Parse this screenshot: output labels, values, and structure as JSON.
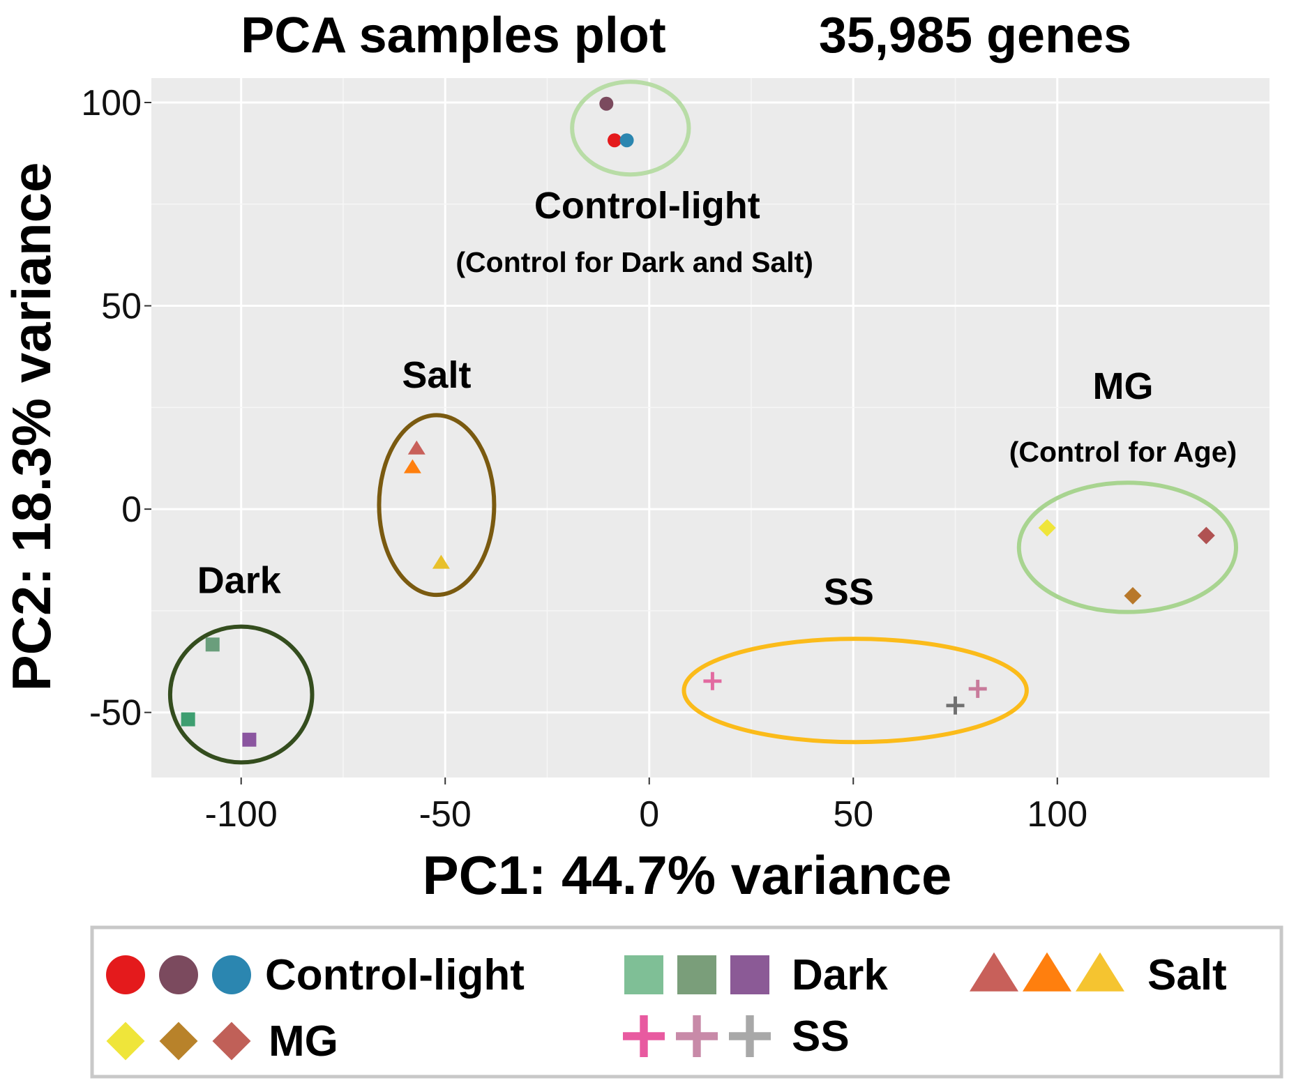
{
  "chart_data": {
    "type": "scatter",
    "title": "PCA samples plot",
    "subtitle": "35,985 genes",
    "xlabel": "PC1: 44.7% variance",
    "ylabel": "PC2: 18.3% variance",
    "xlim": [
      -122,
      152
    ],
    "ylim": [
      -66,
      106
    ],
    "xticks": [
      -100,
      -50,
      0,
      50,
      100
    ],
    "yticks": [
      100,
      50,
      0,
      -50
    ],
    "xtick_labels": [
      "-100",
      "-50",
      "0",
      "50",
      "100"
    ],
    "ytick_labels": [
      "100",
      "50",
      "0",
      "-50"
    ],
    "grid": true,
    "panel_color": "#ebebeb",
    "points": [
      {
        "group": "Control-light",
        "shape": "circle",
        "color": "#7b4a5e",
        "x": -10.5,
        "y": 99.7
      },
      {
        "group": "Control-light",
        "shape": "circle",
        "color": "#e41a1c",
        "x": -8.5,
        "y": 90.7
      },
      {
        "group": "Control-light",
        "shape": "circle",
        "color": "#2b86b0",
        "x": -5.5,
        "y": 90.7
      },
      {
        "group": "Dark",
        "shape": "square",
        "color": "#6a9e7c",
        "x": -107,
        "y": -33.3
      },
      {
        "group": "Dark",
        "shape": "square",
        "color": "#3d9e70",
        "x": -113,
        "y": -51.7
      },
      {
        "group": "Dark",
        "shape": "square",
        "color": "#8b56a0",
        "x": -98,
        "y": -56.7
      },
      {
        "group": "Salt",
        "shape": "triangle",
        "color": "#c8605a",
        "x": -57,
        "y": 14.9
      },
      {
        "group": "Salt",
        "shape": "triangle",
        "color": "#ff7f0e",
        "x": -58,
        "y": 10.3
      },
      {
        "group": "Salt",
        "shape": "triangle",
        "color": "#e8c02a",
        "x": -51,
        "y": -13.2
      },
      {
        "group": "MG",
        "shape": "diamond",
        "color": "#efe53a",
        "x": 97.5,
        "y": -4.6
      },
      {
        "group": "MG",
        "shape": "diamond",
        "color": "#b8782a",
        "x": 118.5,
        "y": -21.3
      },
      {
        "group": "MG",
        "shape": "diamond",
        "color": "#b05252",
        "x": 136.5,
        "y": -6.5
      },
      {
        "group": "SS",
        "shape": "cross",
        "color": "#e26aa0",
        "x": 15.5,
        "y": -42.3
      },
      {
        "group": "SS",
        "shape": "cross",
        "color": "#c87a9a",
        "x": 80.5,
        "y": -44.2
      },
      {
        "group": "SS",
        "shape": "cross",
        "color": "#707070",
        "x": 75,
        "y": -48.3
      }
    ],
    "clusters": [
      {
        "name": "Control-light",
        "cx": -4.6,
        "cy": 93.7,
        "rx": 14.3,
        "ry": 11.4,
        "color": "#b8dca6"
      },
      {
        "name": "Dark",
        "cx": -100,
        "cy": -45.6,
        "rx": 17.4,
        "ry": 16.7,
        "color": "#344d1e"
      },
      {
        "name": "Salt",
        "cx": -52.1,
        "cy": 1.0,
        "rx": 14.1,
        "ry": 22.1,
        "color": "#7a5a10"
      },
      {
        "name": "SS",
        "cx": 50.5,
        "cy": -44.6,
        "rx": 42.0,
        "ry": 12.7,
        "color": "#fbbb1a"
      },
      {
        "name": "MG",
        "cx": 117.2,
        "cy": -9.4,
        "rx": 26.6,
        "ry": 15.9,
        "color": "#a8d490"
      }
    ],
    "annotations": [
      {
        "text": "Control-light",
        "x": -0.5,
        "y": 71.5,
        "size": 54
      },
      {
        "text": "(Control for Dark and Salt)",
        "x": -3.6,
        "y": 58.3,
        "size": 41
      },
      {
        "text": "Salt",
        "x": -52.1,
        "y": 29.9,
        "size": 54
      },
      {
        "text": "MG",
        "x": 116.1,
        "y": 27.1,
        "size": 54
      },
      {
        "text": "(Control for Age)",
        "x": 116.1,
        "y": 11.7,
        "size": 41
      },
      {
        "text": "Dark",
        "x": -100.5,
        "y": -20.6,
        "size": 54
      },
      {
        "text": "SS",
        "x": 48.9,
        "y": -23.5,
        "size": 54
      }
    ],
    "legend": {
      "position": "bottom",
      "entries": [
        {
          "label": "Control-light",
          "shape": "circle",
          "colors": [
            "#e41a1c",
            "#7b4a5e",
            "#2b86b0"
          ]
        },
        {
          "label": "Dark",
          "shape": "square",
          "colors": [
            "#7fbf96",
            "#7a9e7a",
            "#8b5a96"
          ]
        },
        {
          "label": "Salt",
          "shape": "triangle",
          "colors": [
            "#c8605a",
            "#ff7f0e",
            "#f5c430"
          ]
        },
        {
          "label": "MG",
          "shape": "diamond",
          "colors": [
            "#efe53a",
            "#b8822a",
            "#c06058"
          ]
        },
        {
          "label": "SS",
          "shape": "cross",
          "colors": [
            "#e85aa0",
            "#c88aa8",
            "#a8a8a8"
          ]
        }
      ]
    }
  }
}
